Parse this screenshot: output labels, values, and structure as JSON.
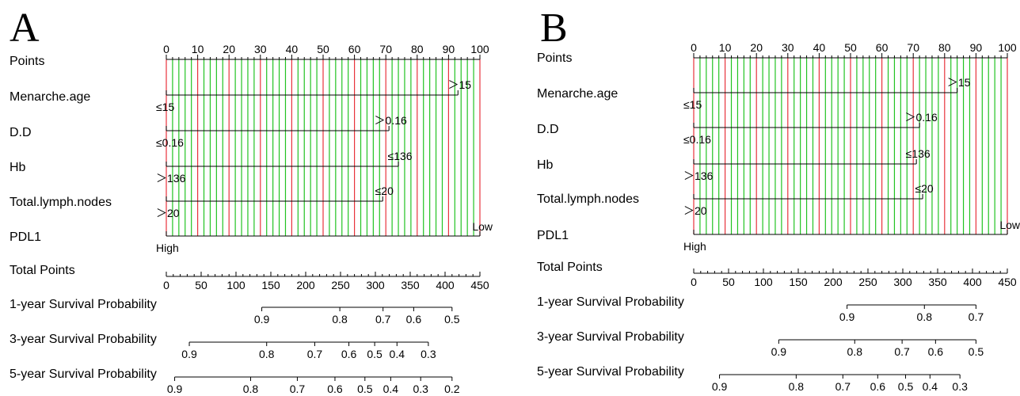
{
  "chart_data": [
    {
      "type": "nomogram",
      "panel_label": "A",
      "rows": {
        "points": "Points",
        "variables": [
          "Menarche.age",
          "D.D",
          "Hb",
          "Total.lymph.nodes",
          "PDL1"
        ],
        "total_points": "Total Points",
        "surv": [
          "1-year Survival Probability",
          "3-year Survival Probability",
          "5-year Survival Probability"
        ]
      },
      "points_axis": {
        "min": 0,
        "max": 100,
        "ticks": [
          0,
          10,
          20,
          30,
          40,
          50,
          60,
          70,
          80,
          90,
          100
        ]
      },
      "variable_bars": [
        {
          "name": "Menarche.age",
          "end": 93,
          "low_label": "≤15",
          "high_label": "＞15"
        },
        {
          "name": "D.D",
          "end": 71,
          "low_label": "≤0.16",
          "high_label": "＞0.16"
        },
        {
          "name": "Hb",
          "end": 74,
          "low_label": "＞136",
          "high_label": "≤136"
        },
        {
          "name": "Total.lymph.nodes",
          "end": 69,
          "low_label": "＞20",
          "high_label": "≤20"
        },
        {
          "name": "PDL1",
          "end": 100,
          "low_label": "High",
          "high_label": "Low"
        }
      ],
      "total_points_axis": {
        "min": 0,
        "max": 450,
        "ticks": [
          0,
          50,
          100,
          150,
          200,
          250,
          300,
          350,
          400,
          450
        ]
      },
      "survival_scales": [
        {
          "name": "1-year Survival Probability",
          "ticks": [
            0.9,
            0.8,
            0.7,
            0.6,
            0.5
          ],
          "tick_labels": [
            "0.9",
            "0.8",
            "0.7",
            "0.6",
            "0.5"
          ],
          "points": [
            137,
            249,
            311,
            355,
            410
          ]
        },
        {
          "name": "3-year Survival Probability",
          "ticks": [
            0.9,
            0.8,
            0.7,
            0.6,
            0.5,
            0.4,
            0.3
          ],
          "tick_labels": [
            "0.9",
            "0.8",
            "0.7",
            "0.6",
            "0.5",
            "0.4",
            "0.3"
          ],
          "points": [
            33,
            144,
            213,
            262,
            299,
            331,
            376
          ]
        },
        {
          "name": "5-year Survival Probability",
          "ticks": [
            0.9,
            0.8,
            0.7,
            0.6,
            0.5,
            0.4,
            0.3,
            0.2
          ],
          "tick_labels": [
            "0.9",
            "0.8",
            "0.7",
            "0.6",
            "0.5",
            "0.4",
            "0.3",
            "0.2"
          ],
          "points": [
            12,
            121,
            188,
            242,
            285,
            322,
            365,
            410
          ]
        }
      ]
    },
    {
      "type": "nomogram",
      "panel_label": "B",
      "rows": {
        "points": "Points",
        "variables": [
          "Menarche.age",
          "D.D",
          "Hb",
          "Total.lymph.nodes",
          "PDL1"
        ],
        "total_points": "Total Points",
        "surv": [
          "1-year Survival Probability",
          "3-year Survival Probability",
          "5-year Survival Probability"
        ]
      },
      "points_axis": {
        "min": 0,
        "max": 100,
        "ticks": [
          0,
          10,
          20,
          30,
          40,
          50,
          60,
          70,
          80,
          90,
          100
        ]
      },
      "variable_bars": [
        {
          "name": "Menarche.age",
          "end": 84,
          "low_label": "≤15",
          "high_label": "＞15"
        },
        {
          "name": "D.D",
          "end": 72,
          "low_label": "≤0.16",
          "high_label": "＞0.16"
        },
        {
          "name": "Hb",
          "end": 71,
          "low_label": "＞136",
          "high_label": "≤136"
        },
        {
          "name": "Total.lymph.nodes",
          "end": 73,
          "low_label": "＞20",
          "high_label": "≤20"
        },
        {
          "name": "PDL1",
          "end": 100,
          "low_label": "High",
          "high_label": "Low"
        }
      ],
      "total_points_axis": {
        "min": 0,
        "max": 450,
        "ticks": [
          0,
          50,
          100,
          150,
          200,
          250,
          300,
          350,
          400,
          450
        ]
      },
      "survival_scales": [
        {
          "name": "1-year Survival Probability",
          "ticks": [
            0.9,
            0.8,
            0.7
          ],
          "tick_labels": [
            "0.9",
            "0.8",
            "0.7"
          ],
          "points": [
            220,
            331,
            405
          ]
        },
        {
          "name": "3-year Survival Probability",
          "ticks": [
            0.9,
            0.8,
            0.7,
            0.6,
            0.5
          ],
          "tick_labels": [
            "0.9",
            "0.8",
            "0.7",
            "0.6",
            "0.5"
          ],
          "points": [
            122,
            231,
            299,
            347,
            405
          ]
        },
        {
          "name": "5-year Survival Probability",
          "ticks": [
            0.9,
            0.8,
            0.7,
            0.6,
            0.5,
            0.4,
            0.3
          ],
          "tick_labels": [
            "0.9",
            "0.8",
            "0.7",
            "0.6",
            "0.5",
            "0.4",
            "0.3"
          ],
          "points": [
            37,
            147,
            214,
            264,
            304,
            339,
            382
          ]
        }
      ]
    }
  ],
  "colors": {
    "red_gridline": "#e8333c",
    "green_gridline": "#22c322",
    "axis": "#000000"
  }
}
